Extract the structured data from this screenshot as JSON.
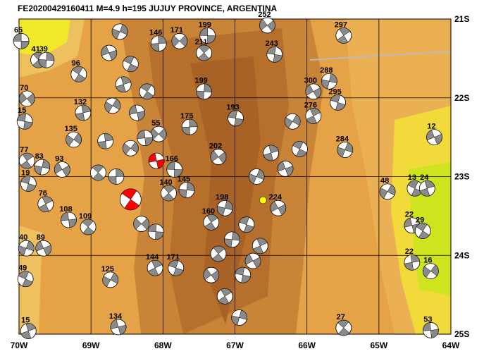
{
  "title": "FE20200429160411 M=4.9 h=195 JUJUY PROVINCE, ARGENTINA",
  "map": {
    "lon_range": [
      -70,
      -64
    ],
    "lat_range": [
      -21,
      -25
    ],
    "lon_ticks": [
      {
        "value": -70,
        "label": "70W"
      },
      {
        "value": -69,
        "label": "69W"
      },
      {
        "value": -68,
        "label": "68W"
      },
      {
        "value": -67,
        "label": "67W"
      },
      {
        "value": -66,
        "label": "66W"
      },
      {
        "value": -65,
        "label": "65W"
      },
      {
        "value": -64,
        "label": "64W"
      }
    ],
    "lat_ticks": [
      {
        "value": -21,
        "label": "21S"
      },
      {
        "value": -22,
        "label": "22S"
      },
      {
        "value": -23,
        "label": "23S"
      },
      {
        "value": -24,
        "label": "24S"
      },
      {
        "value": -25,
        "label": "25S"
      }
    ],
    "events": [
      {
        "lon": -69.97,
        "lat": -21.28,
        "depth": 65
      },
      {
        "lon": -69.73,
        "lat": -21.52,
        "depth": 41
      },
      {
        "lon": -69.62,
        "lat": -21.52,
        "depth": 39
      },
      {
        "lon": -69.89,
        "lat": -22.01,
        "depth": 70
      },
      {
        "lon": -69.92,
        "lat": -22.3,
        "depth": 15
      },
      {
        "lon": -69.89,
        "lat": -22.8,
        "depth": 77
      },
      {
        "lon": -69.68,
        "lat": -22.88,
        "depth": 83
      },
      {
        "lon": -69.4,
        "lat": -22.91,
        "depth": 93
      },
      {
        "lon": -69.87,
        "lat": -23.09,
        "depth": 19
      },
      {
        "lon": -69.63,
        "lat": -23.35,
        "depth": 76
      },
      {
        "lon": -69.9,
        "lat": -23.91,
        "depth": 40
      },
      {
        "lon": -69.66,
        "lat": -23.91,
        "depth": 89
      },
      {
        "lon": -69.91,
        "lat": -24.3,
        "depth": 49
      },
      {
        "lon": -69.87,
        "lat": -24.96,
        "depth": 15
      },
      {
        "lon": -68.73,
        "lat": -24.31,
        "depth": 125
      },
      {
        "lon": -68.62,
        "lat": -24.91,
        "depth": 134
      },
      {
        "lon": -69.17,
        "lat": -21.7,
        "depth": 96
      },
      {
        "lon": -69.11,
        "lat": -22.19,
        "depth": 132
      },
      {
        "lon": -69.24,
        "lat": -22.53,
        "depth": 135
      },
      {
        "lon": -69.31,
        "lat": -23.55,
        "depth": 108
      },
      {
        "lon": -69.04,
        "lat": -23.64,
        "depth": 109
      },
      {
        "lon": -68.06,
        "lat": -21.31,
        "depth": 146
      },
      {
        "lon": -67.77,
        "lat": -21.28,
        "depth": 171
      },
      {
        "lon": -67.38,
        "lat": -21.21,
        "depth": 199
      },
      {
        "lon": -67.43,
        "lat": -21.43,
        "depth": 211
      },
      {
        "lon": -67.43,
        "lat": -21.92,
        "depth": 199
      },
      {
        "lon": -66.55,
        "lat": -21.08,
        "depth": 252
      },
      {
        "lon": -66.45,
        "lat": -21.45,
        "depth": 243
      },
      {
        "lon": -65.49,
        "lat": -21.21,
        "depth": 297
      },
      {
        "lon": -65.69,
        "lat": -21.79,
        "depth": 288
      },
      {
        "lon": -65.91,
        "lat": -21.92,
        "depth": 300
      },
      {
        "lon": -65.57,
        "lat": -22.06,
        "depth": 295
      },
      {
        "lon": -65.91,
        "lat": -22.23,
        "depth": 276
      },
      {
        "lon": -65.47,
        "lat": -22.66,
        "depth": 284
      },
      {
        "lon": -64.23,
        "lat": -22.5,
        "depth": 12
      },
      {
        "lon": -64.5,
        "lat": -23.15,
        "depth": 13
      },
      {
        "lon": -64.33,
        "lat": -23.15,
        "depth": 24
      },
      {
        "lon": -64.88,
        "lat": -23.19,
        "depth": 48
      },
      {
        "lon": -64.54,
        "lat": -23.62,
        "depth": 22
      },
      {
        "lon": -64.39,
        "lat": -23.69,
        "depth": 29
      },
      {
        "lon": -64.54,
        "lat": -24.09,
        "depth": 22
      },
      {
        "lon": -64.28,
        "lat": -24.2,
        "depth": 16
      },
      {
        "lon": -64.28,
        "lat": -24.95,
        "depth": 53
      },
      {
        "lon": -65.49,
        "lat": -24.92,
        "depth": 27
      },
      {
        "lon": -67.63,
        "lat": -22.37,
        "depth": 175
      },
      {
        "lon": -68.06,
        "lat": -22.46,
        "depth": 55
      },
      {
        "lon": -67.84,
        "lat": -22.91,
        "depth": 166
      },
      {
        "lon": -67.92,
        "lat": -23.21,
        "depth": 140
      },
      {
        "lon": -67.67,
        "lat": -23.17,
        "depth": 145
      },
      {
        "lon": -67.23,
        "lat": -22.75,
        "depth": 202
      },
      {
        "lon": -66.99,
        "lat": -22.26,
        "depth": 193
      },
      {
        "lon": -67.33,
        "lat": -23.58,
        "depth": 160
      },
      {
        "lon": -67.14,
        "lat": -23.4,
        "depth": 198
      },
      {
        "lon": -66.4,
        "lat": -23.4,
        "depth": 224
      },
      {
        "lon": -67.82,
        "lat": -24.16,
        "depth": 171
      },
      {
        "lon": -68.11,
        "lat": -24.16,
        "depth": 144
      },
      {
        "lon": -68.6,
        "lat": -21.16
      },
      {
        "lon": -68.75,
        "lat": -21.43
      },
      {
        "lon": -68.45,
        "lat": -21.57
      },
      {
        "lon": -68.55,
        "lat": -21.83
      },
      {
        "lon": -68.7,
        "lat": -22.1
      },
      {
        "lon": -68.36,
        "lat": -22.19
      },
      {
        "lon": -68.22,
        "lat": -21.92
      },
      {
        "lon": -68.8,
        "lat": -22.55
      },
      {
        "lon": -68.45,
        "lat": -22.64
      },
      {
        "lon": -68.25,
        "lat": -22.51
      },
      {
        "lon": -68.9,
        "lat": -22.95
      },
      {
        "lon": -68.65,
        "lat": -23.0
      },
      {
        "lon": -68.3,
        "lat": -23.6
      },
      {
        "lon": -68.1,
        "lat": -23.7
      },
      {
        "lon": -67.23,
        "lat": -23.98
      },
      {
        "lon": -67.04,
        "lat": -23.8
      },
      {
        "lon": -67.33,
        "lat": -24.25
      },
      {
        "lon": -66.89,
        "lat": -24.25
      },
      {
        "lon": -67.14,
        "lat": -24.52
      },
      {
        "lon": -66.94,
        "lat": -24.79
      },
      {
        "lon": -66.75,
        "lat": -24.07
      },
      {
        "lon": -66.84,
        "lat": -23.61
      },
      {
        "lon": -66.65,
        "lat": -23.88
      },
      {
        "lon": -66.7,
        "lat": -23.0
      },
      {
        "lon": -66.3,
        "lat": -22.9
      },
      {
        "lon": -66.1,
        "lat": -22.65
      },
      {
        "lon": -66.5,
        "lat": -22.7
      },
      {
        "lon": -66.2,
        "lat": -22.3
      },
      {
        "lon": -68.09,
        "lat": -22.8,
        "color": "#ff0000"
      },
      {
        "lon": -68.45,
        "lat": -23.29,
        "color": "#ff0000",
        "main": true
      },
      {
        "lon": -66.61,
        "lat": -23.3,
        "color": "#ffff00",
        "dot": true
      }
    ]
  }
}
